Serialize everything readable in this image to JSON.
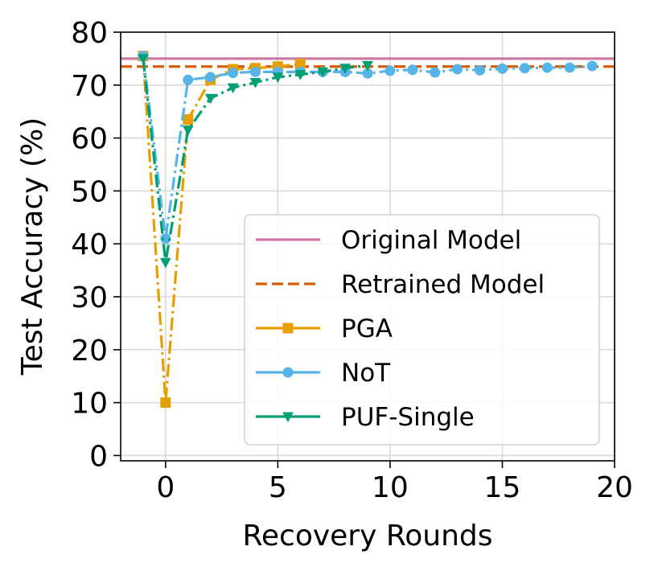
{
  "chart_data": {
    "type": "line",
    "title": "",
    "xlabel": "Recovery Rounds",
    "ylabel": "Test Accuracy (%)",
    "xlim": [
      -2,
      20
    ],
    "ylim": [
      -1,
      80
    ],
    "xticks": [
      0,
      5,
      10,
      15,
      20
    ],
    "yticks": [
      0,
      10,
      20,
      30,
      40,
      50,
      60,
      70,
      80
    ],
    "grid": true,
    "legend_position": "lower-right",
    "hlines": [
      {
        "name": "Original Model",
        "y": 75.0,
        "color": "#cc79a7",
        "style": "solid"
      },
      {
        "name": "Retrained Model",
        "y": 73.5,
        "color": "#d55e00",
        "style": "dashed"
      }
    ],
    "series": [
      {
        "name": "PGA",
        "color": "#e69f00",
        "marker": "square",
        "style": "dashdot",
        "x": [
          -1,
          0,
          1,
          2,
          3,
          4,
          5,
          6
        ],
        "y": [
          75.5,
          10.0,
          63.5,
          71.0,
          73.0,
          73.2,
          73.5,
          74.0
        ]
      },
      {
        "name": "NoT",
        "color": "#56b4e9",
        "marker": "circle",
        "style": "dashdot",
        "x": [
          -1,
          0,
          1,
          2,
          3,
          4,
          5,
          6,
          7,
          8,
          9,
          10,
          11,
          12,
          13,
          14,
          15,
          16,
          17,
          18,
          19
        ],
        "y": [
          75.5,
          41.0,
          71.0,
          71.5,
          72.3,
          72.5,
          72.5,
          72.5,
          72.5,
          72.5,
          72.2,
          72.7,
          72.9,
          72.4,
          73.0,
          72.8,
          73.1,
          73.2,
          73.3,
          73.3,
          73.6
        ]
      },
      {
        "name": "PUF-Single",
        "color": "#009e73",
        "marker": "triangle-down",
        "style": "dashdot",
        "x": [
          -1,
          0,
          1,
          2,
          3,
          4,
          5,
          6,
          7,
          8,
          9
        ],
        "y": [
          75.0,
          36.5,
          61.5,
          67.5,
          69.5,
          70.5,
          71.5,
          72.0,
          72.5,
          73.2,
          73.7
        ]
      }
    ]
  }
}
